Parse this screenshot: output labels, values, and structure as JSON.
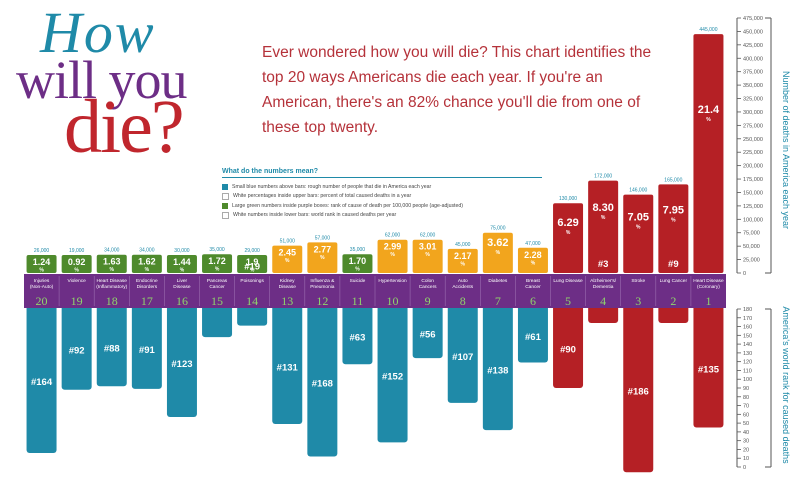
{
  "title": {
    "line1": "How",
    "line2": "will you",
    "line3": "die?"
  },
  "intro_text": "Ever wondered how you will die? This chart identifies the top 20 ways Americans die each year. If you're an American, there's an 82% chance you'll die from one of these top twenty.",
  "legend": {
    "title": "What do the numbers mean?",
    "items": [
      {
        "color": "#1f8aa8",
        "text": "Small blue numbers above bars: rough number of people that die in America each year"
      },
      {
        "color": "#ffffff",
        "text": "White percentages inside upper bars: percent of total caused deaths in a year"
      },
      {
        "color": "#4e8a2c",
        "text": "Large green numbers inside purple boxes: rank of cause of death per 100,000 people (age-adjusted)"
      },
      {
        "color": "#ffffff",
        "text": "White numbers inside lower bars: world rank in caused deaths per year"
      }
    ]
  },
  "colors": {
    "green": "#4e8a2c",
    "orange": "#f2a51d",
    "red": "#b52025",
    "purple": "#6d2e86",
    "teal": "#1f8aa8",
    "title_purple": "#6d2e86",
    "title_red": "#c0262d",
    "title_teal": "#1f8aa8"
  },
  "chart_data": {
    "type": "bar",
    "upper_axis": {
      "label": "Number of deaths in America each year",
      "ticks": [
        "0",
        "25,000",
        "50,000",
        "75,000",
        "100,000",
        "125,000",
        "150,000",
        "175,000",
        "200,000",
        "225,000",
        "250,000",
        "275,000",
        "300,000",
        "325,000",
        "350,000",
        "375,000",
        "400,000",
        "425,000",
        "450,000",
        "475,000"
      ],
      "ylim": [
        0,
        475000
      ]
    },
    "lower_axis": {
      "label": "America's world rank for caused deaths",
      "ticks": [
        "0",
        "10",
        "20",
        "30",
        "40",
        "50",
        "60",
        "70",
        "80",
        "90",
        "100",
        "110",
        "120",
        "130",
        "140",
        "150",
        "160",
        "170",
        "180"
      ],
      "ylim": [
        0,
        180
      ]
    },
    "causes": [
      {
        "cat": "Injuries (Non-Auto)",
        "rank": "20",
        "deaths": 26000,
        "deaths_label": "26,000",
        "pct": "1.24",
        "world": 164,
        "world_label": "#164",
        "color": "green"
      },
      {
        "cat": "Violence",
        "rank": "19",
        "deaths": 19000,
        "deaths_label": "19,000",
        "pct": "0.92",
        "world": 92,
        "world_label": "#92",
        "color": "green"
      },
      {
        "cat": "Heart Disease (Inflammatory)",
        "rank": "18",
        "deaths": 34000,
        "deaths_label": "34,000",
        "pct": "1.63",
        "world": 88,
        "world_label": "#88",
        "color": "green"
      },
      {
        "cat": "Endocrine Disorders",
        "rank": "17",
        "deaths": 34000,
        "deaths_label": "34,000",
        "pct": "1.62",
        "world": 91,
        "world_label": "#91",
        "color": "green"
      },
      {
        "cat": "Liver Disease",
        "rank": "16",
        "deaths": 30000,
        "deaths_label": "30,000",
        "pct": "1.44",
        "world": 123,
        "world_label": "#123",
        "color": "green"
      },
      {
        "cat": "Pancreas Cancer",
        "rank": "15",
        "deaths": 35000,
        "deaths_label": "35,000",
        "pct": "1.72",
        "world": 32,
        "world_label": "#32",
        "color": "green"
      },
      {
        "cat": "Poisonings",
        "rank": "14",
        "deaths": 29000,
        "deaths_label": "29,000",
        "pct": "1.9",
        "world": 19,
        "world_label": "#19",
        "color": "green"
      },
      {
        "cat": "Kidney Disease",
        "rank": "13",
        "deaths": 51000,
        "deaths_label": "51,000",
        "pct": "2.45",
        "world": 131,
        "world_label": "#131",
        "color": "orange"
      },
      {
        "cat": "Influenza & Pneumonia",
        "rank": "12",
        "deaths": 57000,
        "deaths_label": "57,000",
        "pct": "2.77",
        "world": 168,
        "world_label": "#168",
        "color": "orange"
      },
      {
        "cat": "Suicide",
        "rank": "11",
        "deaths": 35000,
        "deaths_label": "35,000",
        "pct": "1.70",
        "world": 63,
        "world_label": "#63",
        "color": "green"
      },
      {
        "cat": "Hypertension",
        "rank": "10",
        "deaths": 62000,
        "deaths_label": "62,000",
        "pct": "2.99",
        "world": 152,
        "world_label": "#152",
        "color": "orange"
      },
      {
        "cat": "Colon Cancers",
        "rank": "9",
        "deaths": 62000,
        "deaths_label": "62,000",
        "pct": "3.01",
        "world": 56,
        "world_label": "#56",
        "color": "orange"
      },
      {
        "cat": "Auto Accidents",
        "rank": "8",
        "deaths": 45000,
        "deaths_label": "45,000",
        "pct": "2.17",
        "world": 107,
        "world_label": "#107",
        "color": "orange"
      },
      {
        "cat": "Diabetes",
        "rank": "7",
        "deaths": 75000,
        "deaths_label": "75,000",
        "pct": "3.62",
        "world": 138,
        "world_label": "#138",
        "color": "orange"
      },
      {
        "cat": "Breast Cancer",
        "rank": "6",
        "deaths": 47000,
        "deaths_label": "47,000",
        "pct": "2.28",
        "world": 61,
        "world_label": "#61",
        "color": "orange"
      },
      {
        "cat": "Lung Disease",
        "rank": "5",
        "deaths": 130000,
        "deaths_label": "130,000",
        "pct": "6.29",
        "world": 90,
        "world_label": "#90",
        "color": "red"
      },
      {
        "cat": "Alzheimer's/ Dementia",
        "rank": "4",
        "deaths": 172000,
        "deaths_label": "172,000",
        "pct": "8.30",
        "world": 3,
        "world_label": "#3",
        "color": "red"
      },
      {
        "cat": "Stroke",
        "rank": "3",
        "deaths": 146000,
        "deaths_label": "146,000",
        "pct": "7.05",
        "world": 186,
        "world_label": "#186",
        "color": "red"
      },
      {
        "cat": "Lung Cancer",
        "rank": "2",
        "deaths": 165000,
        "deaths_label": "165,000",
        "pct": "7.95",
        "world": 9,
        "world_label": "#9",
        "color": "red"
      },
      {
        "cat": "Heart Disease (Coronary)",
        "rank": "1",
        "deaths": 445000,
        "deaths_label": "445,000",
        "pct": "21.4",
        "world": 135,
        "world_label": "#135",
        "color": "red"
      }
    ],
    "pct_unit": "%"
  }
}
